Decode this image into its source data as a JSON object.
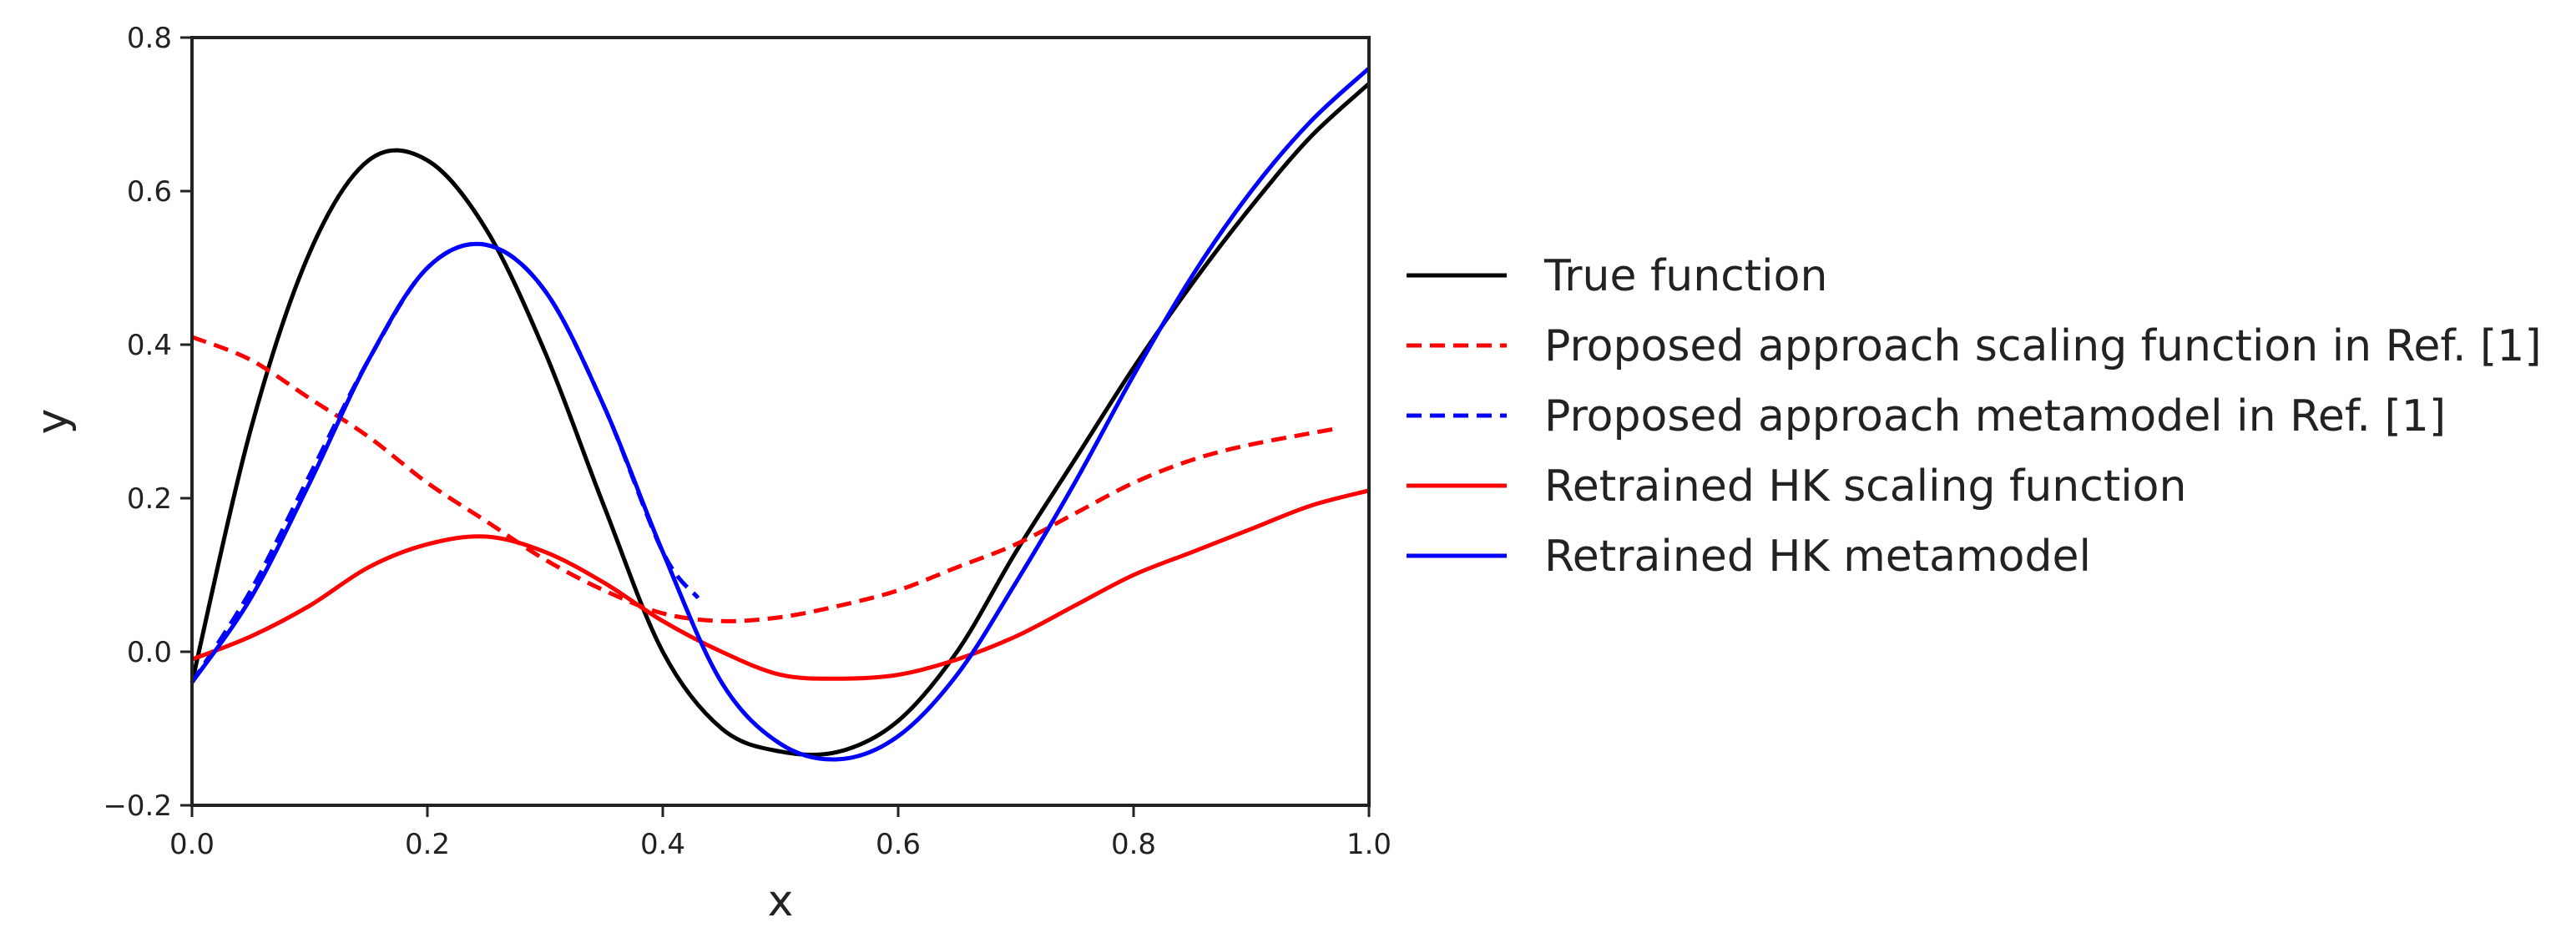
{
  "chart_data": {
    "type": "line",
    "title": "",
    "xlabel": "x",
    "ylabel": "y",
    "xlim": [
      0.0,
      1.0
    ],
    "ylim": [
      -0.2,
      0.8
    ],
    "xticks": [
      "0.0",
      "0.2",
      "0.4",
      "0.6",
      "0.8",
      "1.0"
    ],
    "yticks": [
      "−0.2",
      "0.0",
      "0.2",
      "0.4",
      "0.6",
      "0.8"
    ],
    "grid": false,
    "legend_placement": "outside-right",
    "series": [
      {
        "name": "True function",
        "color": "#000000",
        "style": "solid",
        "x": [
          0.0,
          0.05,
          0.1,
          0.15,
          0.2,
          0.25,
          0.3,
          0.35,
          0.4,
          0.45,
          0.5,
          0.55,
          0.6,
          0.65,
          0.7,
          0.75,
          0.8,
          0.85,
          0.9,
          0.95,
          1.0
        ],
        "y": [
          -0.04,
          0.29,
          0.52,
          0.64,
          0.64,
          0.55,
          0.39,
          0.19,
          0.0,
          -0.1,
          -0.13,
          -0.13,
          -0.09,
          0.0,
          0.13,
          0.25,
          0.37,
          0.48,
          0.58,
          0.67,
          0.74
        ]
      },
      {
        "name": "Proposed approach scaling function in Ref. [1]",
        "color": "#ff0000",
        "style": "dashed",
        "x": [
          0.0,
          0.05,
          0.1,
          0.15,
          0.2,
          0.25,
          0.3,
          0.35,
          0.4,
          0.45,
          0.5,
          0.55,
          0.6,
          0.65,
          0.7,
          0.75,
          0.8,
          0.85,
          0.9,
          0.97
        ],
        "y": [
          0.41,
          0.38,
          0.33,
          0.28,
          0.22,
          0.17,
          0.12,
          0.08,
          0.05,
          0.04,
          0.045,
          0.06,
          0.08,
          0.11,
          0.14,
          0.18,
          0.22,
          0.25,
          0.27,
          0.29
        ]
      },
      {
        "name": "Proposed approach metamodel in Ref. [1]",
        "color": "#0000ff",
        "style": "dashed",
        "x": [
          0.0,
          0.05,
          0.1,
          0.15,
          0.2,
          0.25,
          0.3,
          0.35,
          0.4,
          0.43
        ],
        "y": [
          -0.04,
          0.08,
          0.23,
          0.38,
          0.5,
          0.53,
          0.47,
          0.32,
          0.13,
          0.07
        ]
      },
      {
        "name": "Retrained HK scaling function",
        "color": "#ff0000",
        "style": "solid",
        "x": [
          0.0,
          0.05,
          0.1,
          0.15,
          0.2,
          0.25,
          0.3,
          0.35,
          0.4,
          0.45,
          0.5,
          0.55,
          0.6,
          0.65,
          0.7,
          0.75,
          0.8,
          0.85,
          0.9,
          0.95,
          1.0
        ],
        "y": [
          -0.01,
          0.02,
          0.06,
          0.11,
          0.14,
          0.15,
          0.13,
          0.09,
          0.04,
          0.0,
          -0.03,
          -0.035,
          -0.03,
          -0.01,
          0.02,
          0.06,
          0.1,
          0.13,
          0.16,
          0.19,
          0.21
        ]
      },
      {
        "name": "Retrained HK metamodel",
        "color": "#0000ff",
        "style": "solid",
        "x": [
          0.0,
          0.05,
          0.1,
          0.15,
          0.2,
          0.25,
          0.3,
          0.35,
          0.4,
          0.45,
          0.5,
          0.55,
          0.6,
          0.65,
          0.7,
          0.75,
          0.8,
          0.85,
          0.9,
          0.95,
          1.0
        ],
        "y": [
          -0.04,
          0.07,
          0.22,
          0.38,
          0.5,
          0.53,
          0.47,
          0.32,
          0.13,
          -0.04,
          -0.12,
          -0.14,
          -0.11,
          -0.03,
          0.09,
          0.22,
          0.36,
          0.49,
          0.6,
          0.69,
          0.76
        ]
      }
    ]
  }
}
